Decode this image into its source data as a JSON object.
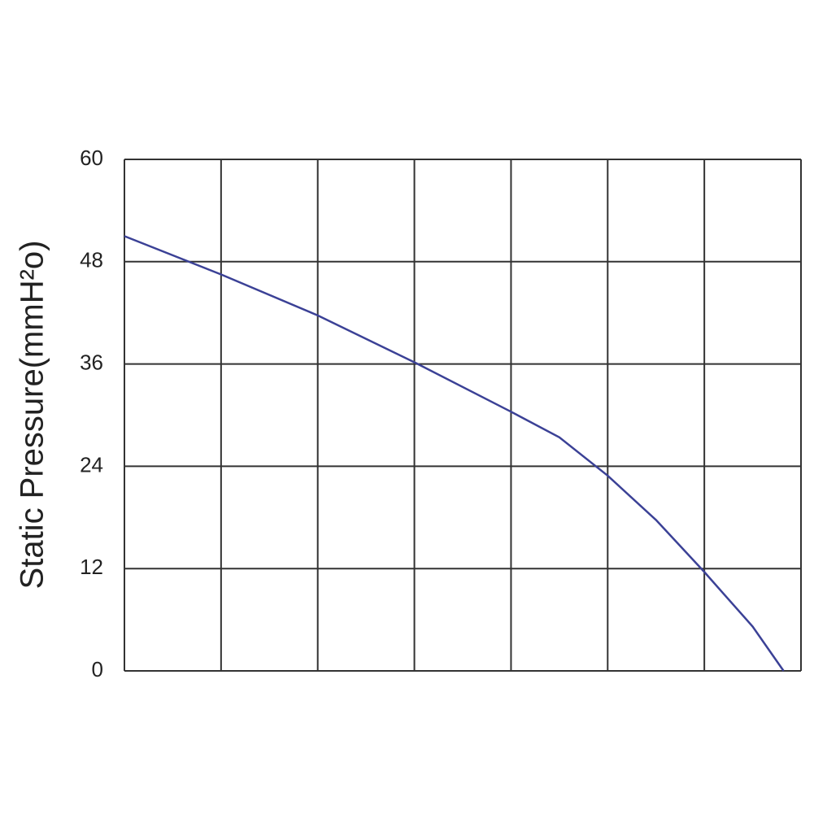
{
  "chart_data": {
    "type": "line",
    "y_label": "Static Pressure(mmH²o)",
    "x": [
      0,
      1,
      2,
      3,
      4,
      4.5,
      5,
      5.5,
      6,
      6.5,
      6.82
    ],
    "series": [
      {
        "color": "#3b4196",
        "values": [
          51.0,
          46.5,
          41.7,
          36.2,
          30.4,
          27.4,
          22.9,
          17.7,
          11.6,
          5.2,
          0
        ]
      }
    ],
    "xlim": [
      0,
      7
    ],
    "xticks": [
      0,
      1,
      2,
      3,
      4,
      5,
      6,
      7
    ],
    "ylim": [
      0,
      60
    ],
    "yticks": [
      0,
      12,
      24,
      36,
      48,
      60
    ],
    "grid": true
  }
}
